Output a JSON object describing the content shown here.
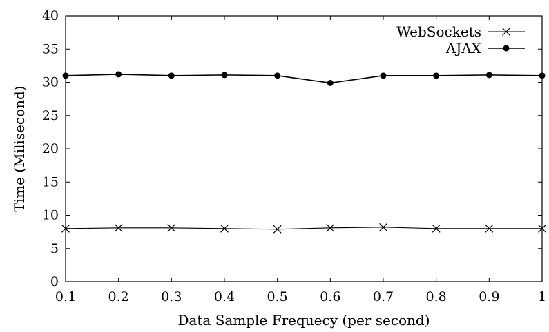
{
  "chart_data": {
    "type": "line",
    "title": "",
    "xlabel": "Data Sample Frequecy (per second)",
    "ylabel": "Time (Milisecond)",
    "xlim": [
      0.1,
      1
    ],
    "ylim": [
      0,
      40
    ],
    "x_ticks": [
      0.1,
      0.2,
      0.3,
      0.4,
      0.5,
      0.6,
      0.7,
      0.8,
      0.9,
      1
    ],
    "x_tick_labels": [
      "0.1",
      "0.2",
      "0.3",
      "0.4",
      "0.5",
      "0.6",
      "0.7",
      "0.8",
      "0.9",
      "1"
    ],
    "y_ticks": [
      0,
      5,
      10,
      15,
      20,
      25,
      30,
      35,
      40
    ],
    "y_tick_labels": [
      "0",
      "5",
      "10",
      "15",
      "20",
      "25",
      "30",
      "35",
      "40"
    ],
    "grid": false,
    "legend_position": "top-right",
    "series": [
      {
        "name": "WebSockets",
        "marker": "x",
        "color": "#000000",
        "x": [
          0.1,
          0.2,
          0.3,
          0.4,
          0.5,
          0.6,
          0.7,
          0.8,
          0.9,
          1
        ],
        "y": [
          8.0,
          8.1,
          8.1,
          8.0,
          7.9,
          8.1,
          8.2,
          8.0,
          8.0,
          8.0
        ]
      },
      {
        "name": "AJAX",
        "marker": "filled-circle",
        "color": "#000000",
        "x": [
          0.1,
          0.2,
          0.3,
          0.4,
          0.5,
          0.6,
          0.7,
          0.8,
          0.9,
          1
        ],
        "y": [
          31.0,
          31.2,
          31.0,
          31.1,
          31.0,
          29.9,
          31.0,
          31.0,
          31.1,
          31.0
        ]
      }
    ]
  }
}
